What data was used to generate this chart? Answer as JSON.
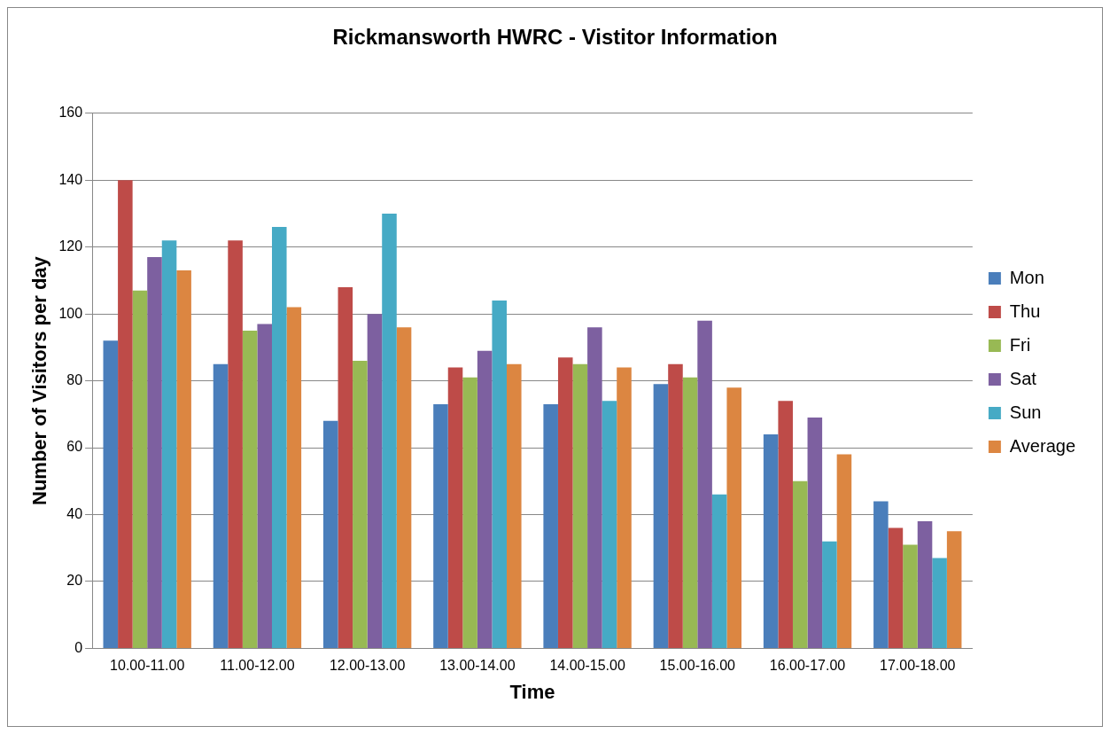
{
  "chart_data": {
    "type": "bar",
    "title": "Rickmansworth HWRC - Vistitor Information",
    "xlabel": "Time",
    "ylabel": "Number of Visitors per day",
    "categories": [
      "10.00-11.00",
      "11.00-12.00",
      "12.00-13.00",
      "13.00-14.00",
      "14.00-15.00",
      "15.00-16.00",
      "16.00-17.00",
      "17.00-18.00"
    ],
    "series": [
      {
        "name": "Mon",
        "color": "#4a7ebb",
        "values": [
          92,
          85,
          68,
          73,
          73,
          79,
          64,
          44
        ]
      },
      {
        "name": "Thu",
        "color": "#be4b48",
        "values": [
          140,
          122,
          108,
          84,
          87,
          85,
          74,
          36
        ]
      },
      {
        "name": "Fri",
        "color": "#98b954",
        "values": [
          107,
          95,
          86,
          81,
          85,
          81,
          50,
          31
        ]
      },
      {
        "name": "Sat",
        "color": "#7d60a0",
        "values": [
          117,
          97,
          100,
          89,
          96,
          98,
          69,
          38
        ]
      },
      {
        "name": "Sun",
        "color": "#46aac5",
        "values": [
          122,
          126,
          130,
          104,
          74,
          46,
          32,
          27
        ]
      },
      {
        "name": "Average",
        "color": "#dc8641",
        "values": [
          113,
          102,
          96,
          85,
          84,
          78,
          58,
          35
        ]
      }
    ],
    "ylim": [
      0,
      160
    ],
    "yticks": [
      0,
      20,
      40,
      60,
      80,
      100,
      120,
      140,
      160
    ],
    "grid": "y",
    "legend": "right"
  }
}
